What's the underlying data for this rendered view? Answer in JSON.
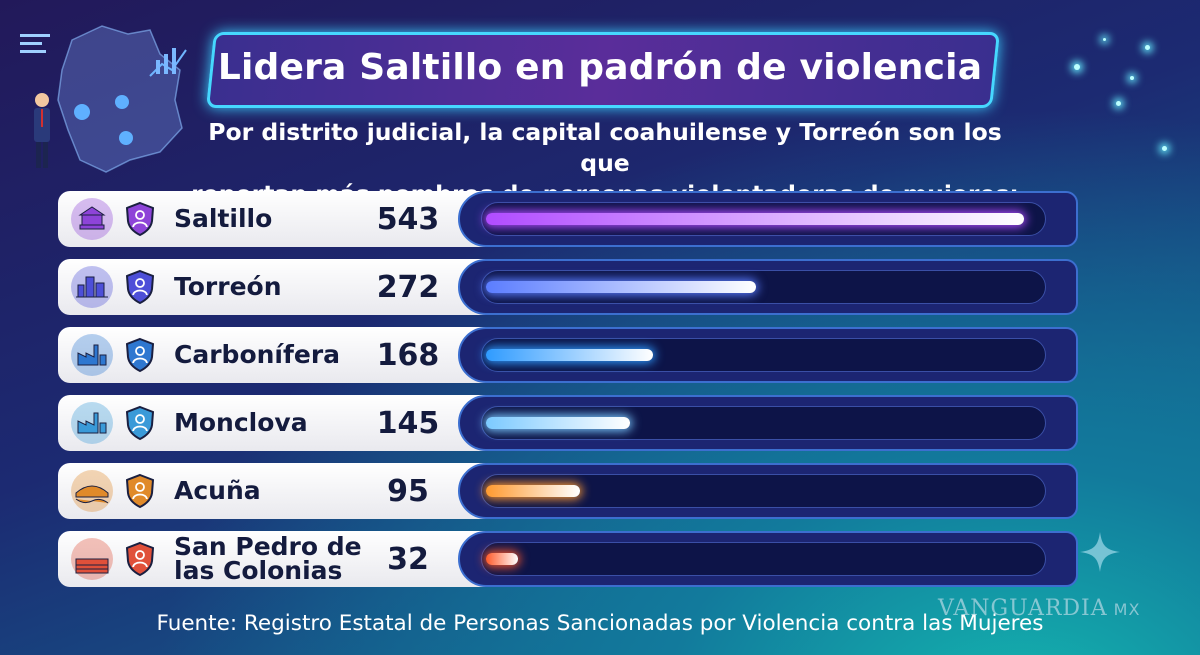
{
  "header": {
    "title": "Lidera Saltillo en padrón de violencia",
    "subtitle_line1": "Por distrito judicial, la capital coahuilense y Torreón son los que",
    "subtitle_line2": "reportan más nombres de personas violentadoras de mujeres:"
  },
  "chart_data": {
    "type": "bar",
    "categories": [
      "Saltillo",
      "Torreón",
      "Carbonífera",
      "Monclova",
      "Acuña",
      "San Pedro de las Colonias"
    ],
    "category_lines": [
      [
        "Saltillo"
      ],
      [
        "Torreón"
      ],
      [
        "Carbonífera"
      ],
      [
        "Monclova"
      ],
      [
        "Acuña"
      ],
      [
        "San Pedro de",
        "las Colonias"
      ]
    ],
    "values": [
      543,
      272,
      168,
      145,
      95,
      32
    ],
    "value_labels": [
      "543",
      "272",
      "168",
      "145",
      "95",
      "32"
    ],
    "bar_colors": [
      "#b14cff",
      "#5b7dff",
      "#2f9bff",
      "#7ccaff",
      "#ff9a30",
      "#ff5a2a"
    ],
    "icon_colors": [
      "#8e44d8",
      "#4d4fd8",
      "#2e77d0",
      "#3a9ad8",
      "#e08a2a",
      "#e0503a"
    ],
    "icons": [
      "building-icon",
      "city-icon",
      "factory-icon",
      "factory-icon",
      "bridge-icon",
      "field-icon"
    ],
    "orientation": "horizontal",
    "xlim": [
      0,
      560
    ]
  },
  "footer": {
    "source": "Fuente: Registro Estatal de Personas Sancionadas por Violencia contra las Mujeres",
    "watermark": "VANGUARDIA",
    "watermark_suffix": "MX"
  }
}
